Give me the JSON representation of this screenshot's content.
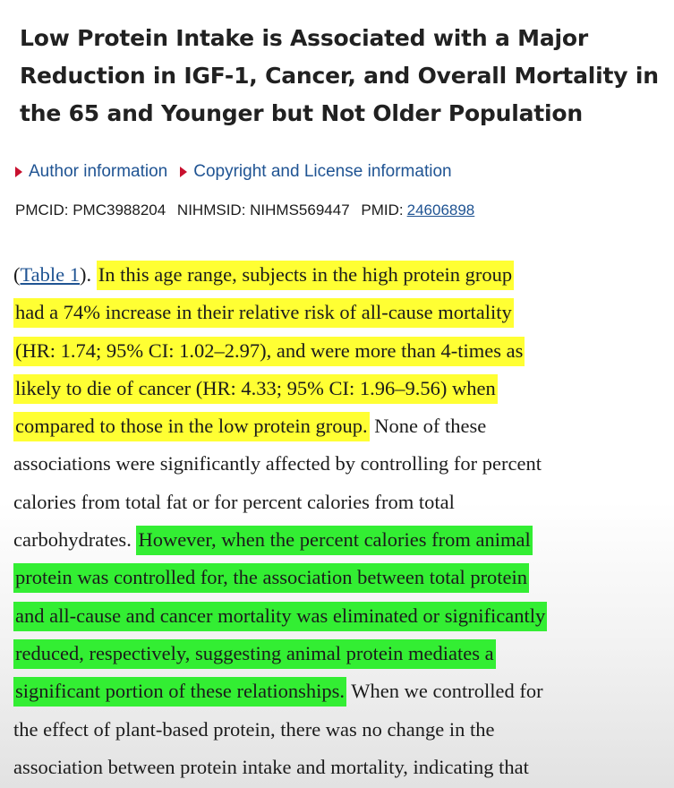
{
  "article": {
    "title": "Low Protein Intake is Associated with a Major Reduction in IGF-1, Cancer, and Overall Mortality in the 65 and Younger but Not Older Population",
    "links": {
      "author_info": "Author information",
      "copyright_info": "Copyright and License information"
    },
    "ids": {
      "pmcid": "PMCID: PMC3988204",
      "nihmsid": "NIHMSID: NIHMS569447",
      "pmid_label": "PMID:",
      "pmid_value": "24606898"
    }
  },
  "body": {
    "table_open": "(",
    "table_link": "Table 1",
    "table_close": ").",
    "y1": "In this age range, subjects in the high protein group",
    "y2": "had a 74% increase in their relative risk of all-cause mortality",
    "y3": "(HR: 1.74; 95% CI: 1.02–2.97), and were more than 4-times as",
    "y4": "likely to die of cancer (HR: 4.33; 95% CI: 1.96–9.56) when",
    "y5": "compared to those in the low protein group.",
    "p5": "None of these",
    "p6": "associations were significantly affected by controlling for percent",
    "p7": "calories from total fat or for percent calories from total",
    "p8": "carbohydrates.",
    "g1": "However, when the percent calories from animal",
    "g2": "protein was controlled for, the association between total protein",
    "g3": "and all-cause and cancer mortality was eliminated or significantly",
    "g4": "reduced, respectively, suggesting animal protein mediates a",
    "g5": "significant portion of these relationships.",
    "p13": "When we controlled for",
    "p14": "the effect of plant-based protein, there was no change in the",
    "p15": "association between protein intake and mortality, indicating that"
  },
  "colors": {
    "highlight_yellow": "#ffff33",
    "highlight_green": "#33ee33",
    "link_blue": "#205493",
    "triangle_red": "#c8102e"
  }
}
